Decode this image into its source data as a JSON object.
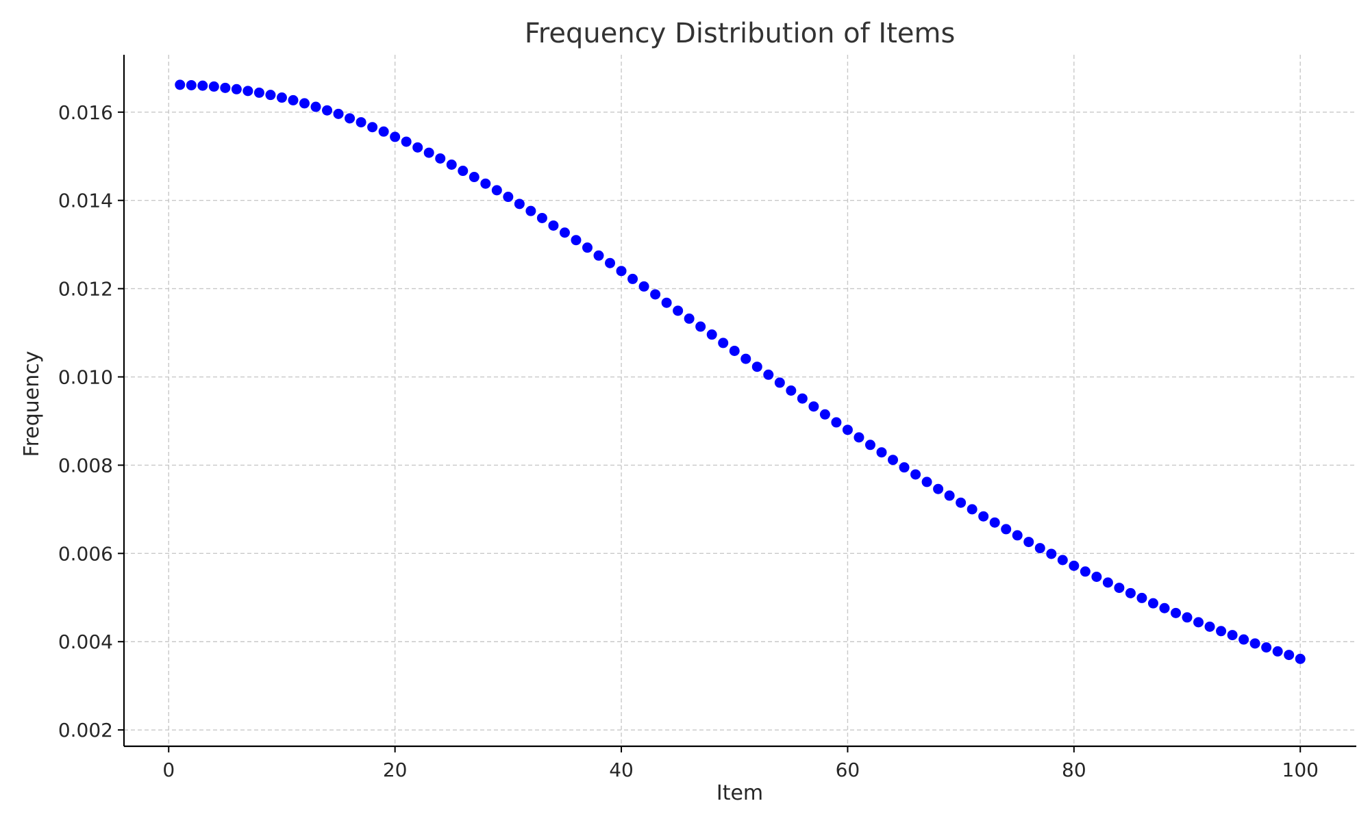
{
  "chart_data": {
    "type": "scatter",
    "title": "Frequency Distribution of Items",
    "xlabel": "Item",
    "ylabel": "Frequency",
    "xlim": [
      -3.95,
      104.95
    ],
    "ylim": [
      0.00163,
      0.0173
    ],
    "x_ticks": [
      0,
      20,
      40,
      60,
      80,
      100
    ],
    "x_tick_labels": [
      "0",
      "20",
      "40",
      "60",
      "80",
      "100"
    ],
    "y_ticks": [
      0.002,
      0.004,
      0.006,
      0.008,
      0.01,
      0.012,
      0.014,
      0.016
    ],
    "y_tick_labels": [
      "0.002",
      "0.004",
      "0.006",
      "0.008",
      "0.010",
      "0.012",
      "0.014",
      "0.016"
    ],
    "grid": true,
    "marker_color": "#0000ff",
    "x": [
      1,
      2,
      3,
      4,
      5,
      6,
      7,
      8,
      9,
      10,
      11,
      12,
      13,
      14,
      15,
      16,
      17,
      18,
      19,
      20,
      21,
      22,
      23,
      24,
      25,
      26,
      27,
      28,
      29,
      30,
      31,
      32,
      33,
      34,
      35,
      36,
      37,
      38,
      39,
      40,
      41,
      42,
      43,
      44,
      45,
      46,
      47,
      48,
      49,
      50,
      51,
      52,
      53,
      54,
      55,
      56,
      57,
      58,
      59,
      60,
      61,
      62,
      63,
      64,
      65,
      66,
      67,
      68,
      69,
      70,
      71,
      72,
      73,
      74,
      75,
      76,
      77,
      78,
      79,
      80,
      81,
      82,
      83,
      84,
      85,
      86,
      87,
      88,
      89,
      90,
      91,
      92,
      93,
      94,
      95,
      96,
      97,
      98,
      99,
      100
    ],
    "y": [
      0.01662,
      0.01661,
      0.0166,
      0.01658,
      0.01655,
      0.01652,
      0.01648,
      0.01644,
      0.01639,
      0.01633,
      0.01627,
      0.0162,
      0.01612,
      0.01604,
      0.01596,
      0.01586,
      0.01577,
      0.01566,
      0.01556,
      0.01544,
      0.01533,
      0.0152,
      0.01508,
      0.01495,
      0.01481,
      0.01467,
      0.01453,
      0.01438,
      0.01423,
      0.01408,
      0.01392,
      0.01376,
      0.0136,
      0.01343,
      0.01327,
      0.0131,
      0.01293,
      0.01275,
      0.01258,
      0.0124,
      0.01222,
      0.01205,
      0.01187,
      0.01168,
      0.0115,
      0.01132,
      0.01114,
      0.01096,
      0.01077,
      0.01059,
      0.01041,
      0.01023,
      0.01005,
      0.00987,
      0.00969,
      0.00951,
      0.00933,
      0.00915,
      0.00897,
      0.0088,
      0.00863,
      0.00846,
      0.00829,
      0.00812,
      0.00795,
      0.00779,
      0.00762,
      0.00746,
      0.00731,
      0.00715,
      0.007,
      0.00684,
      0.0067,
      0.00655,
      0.00641,
      0.00626,
      0.00612,
      0.00599,
      0.00585,
      0.00572,
      0.00559,
      0.00547,
      0.00534,
      0.00522,
      0.0051,
      0.00499,
      0.00487,
      0.00476,
      0.00465,
      0.00455,
      0.00444,
      0.00434,
      0.00424,
      0.00415,
      0.00405,
      0.00396,
      0.00387,
      0.00378,
      0.0037,
      0.00361
    ]
  }
}
